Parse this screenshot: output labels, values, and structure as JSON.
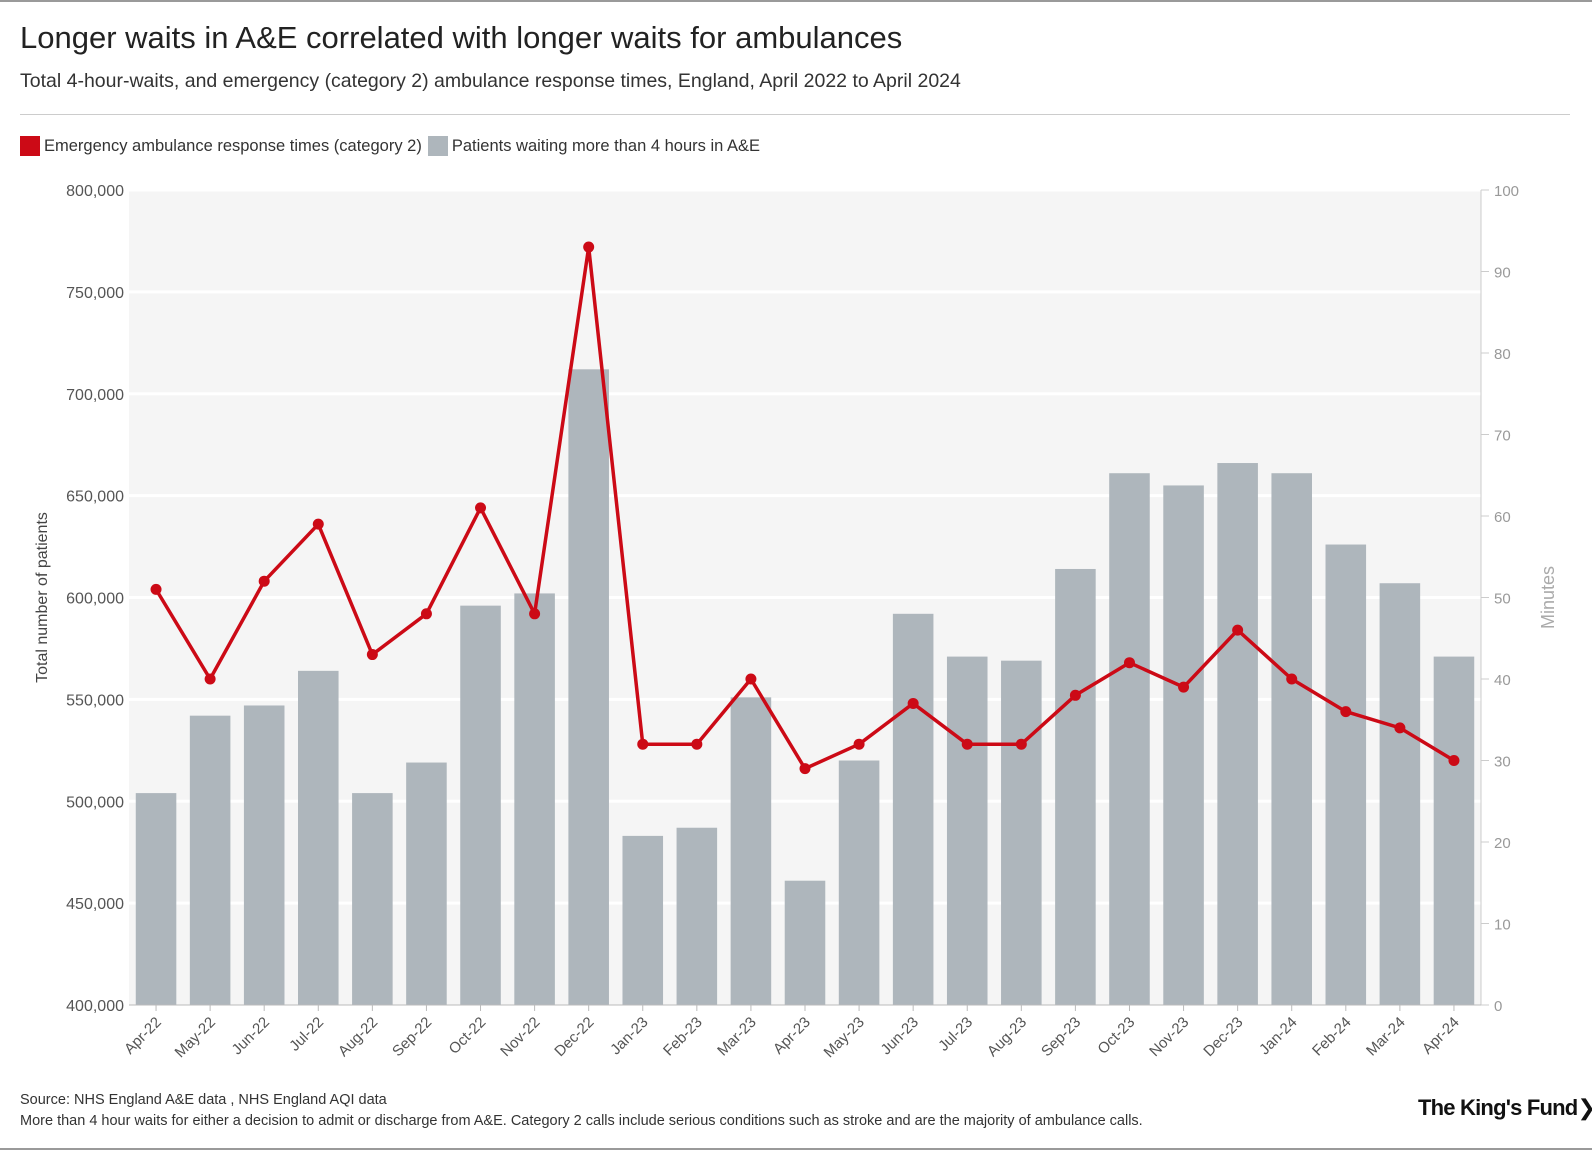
{
  "header": {
    "title": "Longer waits in A&E correlated with longer waits for ambulances",
    "subtitle": "Total 4-hour-waits, and emergency (category 2) ambulance response times, England, April 2022 to April 2024"
  },
  "footer": {
    "source": "Source: NHS England A&E data , NHS England AQI data",
    "note": "More than 4 hour waits for either a decision to admit or discharge from A&E. Category 2 calls include serious conditions such as stroke and are the majority of ambulance calls.",
    "logo": "The King's Fund",
    "logo_arrow": "❯"
  },
  "colors": {
    "line": "#cc0a16",
    "bar": "#aeb6bc",
    "plot_bg": "#f5f5f5"
  },
  "chart_data": {
    "type": "bar",
    "categories": [
      "Apr-22",
      "May-22",
      "Jun-22",
      "Jul-22",
      "Aug-22",
      "Sep-22",
      "Oct-22",
      "Nov-22",
      "Dec-22",
      "Jan-23",
      "Feb-23",
      "Mar-23",
      "Apr-23",
      "May-23",
      "Jun-23",
      "Jul-23",
      "Aug-23",
      "Sep-23",
      "Oct-23",
      "Nov-23",
      "Dec-23",
      "Jan-24",
      "Feb-24",
      "Mar-24",
      "Apr-24"
    ],
    "series": [
      {
        "name": "Patients waiting more than 4 hours in A&E",
        "type": "bar",
        "axis": "left",
        "values": [
          504000,
          542000,
          547000,
          564000,
          504000,
          519000,
          596000,
          602000,
          712000,
          483000,
          487000,
          551000,
          461000,
          520000,
          592000,
          571000,
          569000,
          614000,
          661000,
          655000,
          666000,
          661000,
          626000,
          607000,
          571000
        ]
      },
      {
        "name": "Emergency ambulance response times (category 2)",
        "type": "line",
        "axis": "right",
        "values": [
          51,
          40,
          52,
          59,
          43,
          48,
          61,
          48,
          93,
          32,
          32,
          40,
          29,
          32,
          37,
          32,
          32,
          38,
          42,
          39,
          46,
          40,
          36,
          34,
          30
        ]
      }
    ],
    "y_left": {
      "label": "Total number of patients",
      "range": [
        400000,
        800000
      ],
      "ticks": [
        "400,000",
        "450,000",
        "500,000",
        "550,000",
        "600,000",
        "650,000",
        "700,000",
        "750,000",
        "800,000"
      ]
    },
    "y_right": {
      "label": "Minutes",
      "range": [
        0,
        100
      ],
      "ticks": [
        "0",
        "10",
        "20",
        "30",
        "40",
        "50",
        "60",
        "70",
        "80",
        "90",
        "100"
      ]
    },
    "legend_position": "top-left",
    "grid": true
  }
}
